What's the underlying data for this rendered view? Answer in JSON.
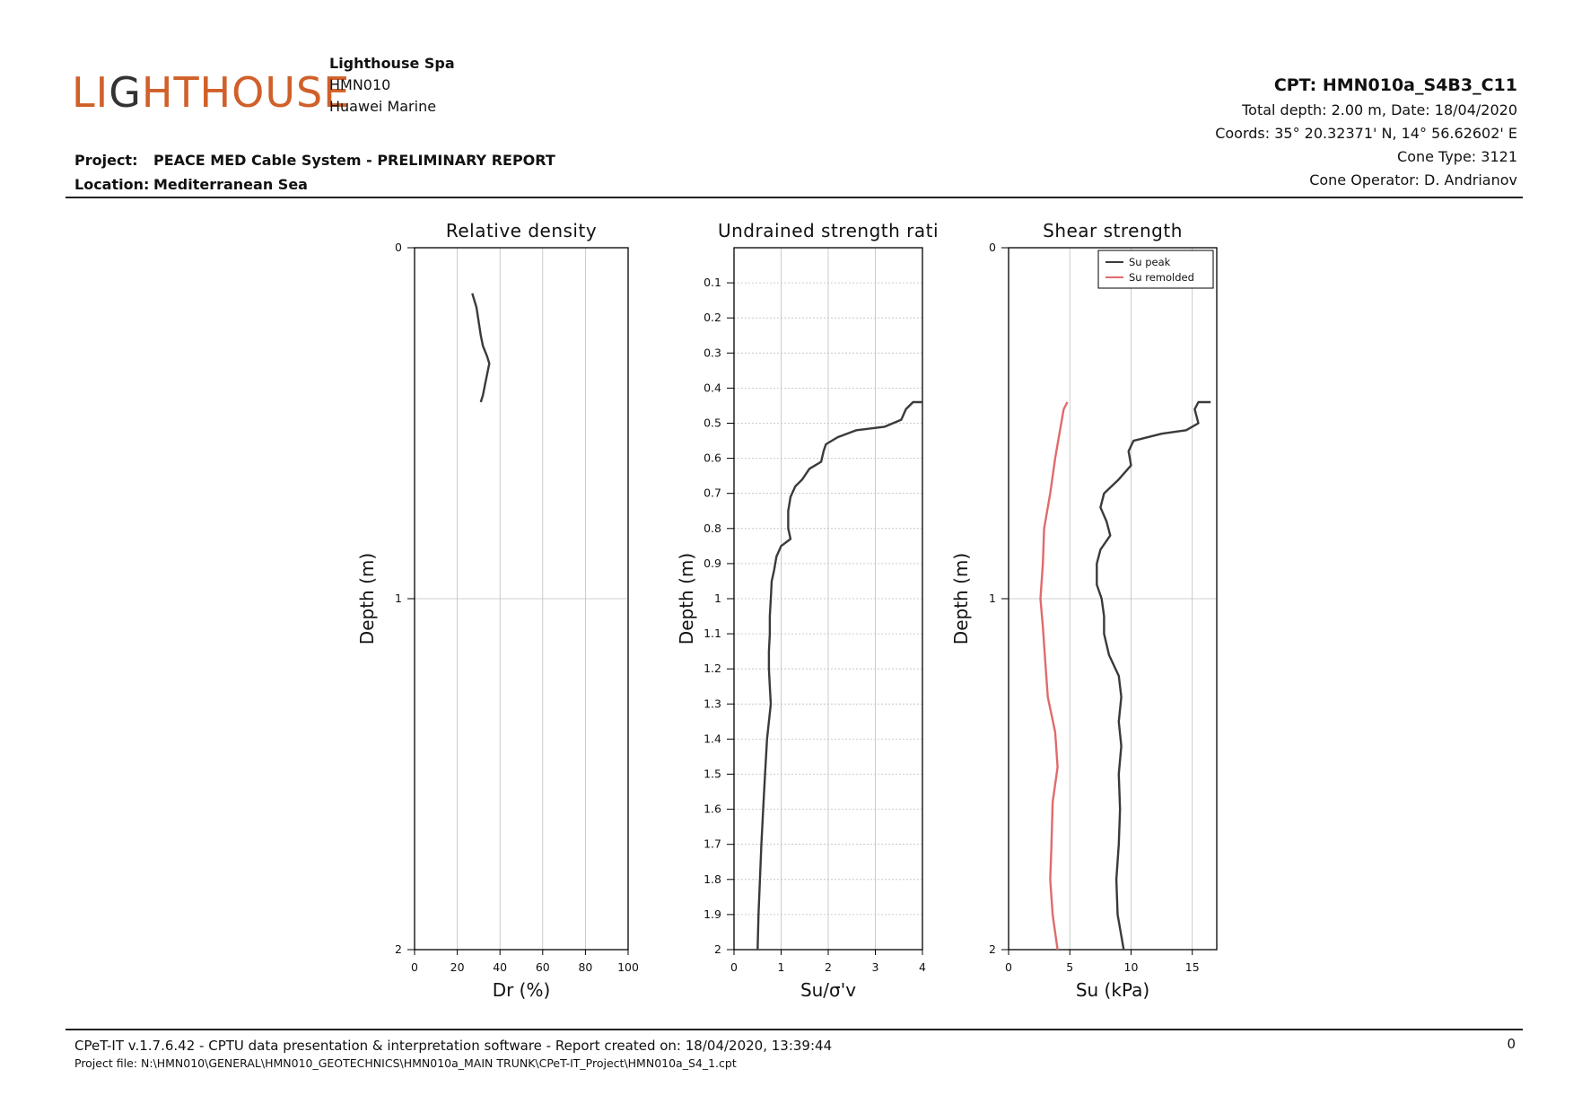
{
  "header": {
    "logo_text_a": "LI",
    "logo_text_b": "G",
    "logo_text_c": "HTHOUSE",
    "company_name": "Lighthouse Spa",
    "company_code": "HMN010",
    "client": "Huawei Marine",
    "project_label": "Project:",
    "project_value": "PEACE MED Cable System - PRELIMINARY REPORT",
    "location_label": "Location:",
    "location_value": "Mediterranean Sea",
    "cpt_title": "CPT: HMN010a_S4B3_C11",
    "total_depth": "Total depth: 2.00 m, Date: 18/04/2020",
    "coords": "Coords: 35° 20.32371' N, 14° 56.62602' E",
    "cone_type": "Cone Type: 3121",
    "cone_operator": "Cone Operator: D. Andrianov"
  },
  "footer": {
    "software": "CPeT-IT v.1.7.6.42 - CPTU data presentation & interpretation software - Report created on: 18/04/2020, 13:39:44",
    "project_file": "Project file: N:\\HMN010\\GENERAL\\HMN010_GEOTECHNICS\\HMN010a_MAIN TRUNK\\CPeT-IT_Project\\HMN010a_S4_1.cpt",
    "page_number": "0"
  },
  "colors": {
    "logo": "#d0602a",
    "series_dark": "#3a3a3a",
    "series_red": "#e06b6b",
    "grid": "#bfbfbf"
  },
  "chart_data": [
    {
      "type": "line",
      "title": "Relative density",
      "xlabel": "Dr (%)",
      "ylabel": "Depth (m)",
      "xlim": [
        0,
        100
      ],
      "ylim": [
        0,
        2
      ],
      "y_inverted": true,
      "x_ticks": [
        "0",
        "20",
        "40",
        "60",
        "80",
        "100"
      ],
      "y_ticks": [
        "0",
        "1",
        "2"
      ],
      "series": [
        {
          "color": "#3a3a3a",
          "points": [
            [
              27,
              0.13
            ],
            [
              29,
              0.17
            ],
            [
              30,
              0.21
            ],
            [
              31,
              0.25
            ],
            [
              32,
              0.28
            ],
            [
              34,
              0.31
            ],
            [
              35,
              0.33
            ],
            [
              34,
              0.36
            ],
            [
              33,
              0.39
            ],
            [
              32,
              0.42
            ],
            [
              31,
              0.44
            ]
          ]
        }
      ]
    },
    {
      "type": "line",
      "title": "Undrained strength rati",
      "xlabel": "Su/σ'v",
      "ylabel": "Depth (m)",
      "xlim": [
        0,
        4
      ],
      "ylim": [
        0,
        2
      ],
      "y_inverted": true,
      "x_ticks": [
        "0",
        "1",
        "2",
        "3",
        "4"
      ],
      "y_ticks": [
        "0.1",
        "0.2",
        "0.3",
        "0.4",
        "0.5",
        "0.6",
        "0.7",
        "0.8",
        "0.9",
        "1",
        "1.1",
        "1.2",
        "1.3",
        "1.4",
        "1.5",
        "1.6",
        "1.7",
        "1.8",
        "1.9",
        "2"
      ],
      "series": [
        {
          "color": "#3a3a3a",
          "points": [
            [
              4.0,
              0.44
            ],
            [
              3.8,
              0.44
            ],
            [
              3.65,
              0.46
            ],
            [
              3.55,
              0.49
            ],
            [
              3.2,
              0.51
            ],
            [
              2.6,
              0.52
            ],
            [
              2.2,
              0.54
            ],
            [
              1.95,
              0.56
            ],
            [
              1.9,
              0.58
            ],
            [
              1.85,
              0.61
            ],
            [
              1.6,
              0.63
            ],
            [
              1.45,
              0.66
            ],
            [
              1.3,
              0.68
            ],
            [
              1.2,
              0.71
            ],
            [
              1.15,
              0.75
            ],
            [
              1.15,
              0.8
            ],
            [
              1.2,
              0.83
            ],
            [
              1.0,
              0.85
            ],
            [
              0.9,
              0.88
            ],
            [
              0.85,
              0.92
            ],
            [
              0.8,
              0.95
            ],
            [
              0.78,
              1.0
            ],
            [
              0.76,
              1.05
            ],
            [
              0.76,
              1.1
            ],
            [
              0.74,
              1.15
            ],
            [
              0.74,
              1.2
            ],
            [
              0.76,
              1.25
            ],
            [
              0.78,
              1.3
            ],
            [
              0.74,
              1.35
            ],
            [
              0.7,
              1.4
            ],
            [
              0.66,
              1.5
            ],
            [
              0.62,
              1.6
            ],
            [
              0.58,
              1.7
            ],
            [
              0.55,
              1.8
            ],
            [
              0.52,
              1.9
            ],
            [
              0.5,
              2.0
            ]
          ]
        }
      ]
    },
    {
      "type": "line",
      "title": "Shear strength",
      "xlabel": "Su (kPa)",
      "ylabel": "Depth (m)",
      "xlim": [
        0,
        17
      ],
      "ylim": [
        0,
        2
      ],
      "y_inverted": true,
      "x_ticks": [
        "0",
        "5",
        "10",
        "15"
      ],
      "y_ticks": [
        "0",
        "1",
        "2"
      ],
      "legend": "top-right",
      "series": [
        {
          "name": "Su peak",
          "color": "#3a3a3a",
          "points": [
            [
              16.5,
              0.44
            ],
            [
              15.5,
              0.44
            ],
            [
              15.2,
              0.46
            ],
            [
              15.5,
              0.5
            ],
            [
              14.5,
              0.52
            ],
            [
              12.5,
              0.53
            ],
            [
              10.2,
              0.55
            ],
            [
              9.8,
              0.58
            ],
            [
              10.0,
              0.62
            ],
            [
              9.0,
              0.66
            ],
            [
              7.8,
              0.7
            ],
            [
              7.5,
              0.74
            ],
            [
              8.0,
              0.78
            ],
            [
              8.3,
              0.82
            ],
            [
              7.5,
              0.86
            ],
            [
              7.2,
              0.9
            ],
            [
              7.2,
              0.96
            ],
            [
              7.6,
              1.0
            ],
            [
              7.8,
              1.05
            ],
            [
              7.8,
              1.1
            ],
            [
              8.2,
              1.16
            ],
            [
              9.0,
              1.22
            ],
            [
              9.2,
              1.28
            ],
            [
              9.0,
              1.35
            ],
            [
              9.2,
              1.42
            ],
            [
              9.0,
              1.5
            ],
            [
              9.1,
              1.6
            ],
            [
              9.0,
              1.7
            ],
            [
              8.8,
              1.8
            ],
            [
              8.9,
              1.9
            ],
            [
              9.4,
              2.0
            ]
          ]
        },
        {
          "name": "Su remolded",
          "color": "#e06b6b",
          "points": [
            [
              4.8,
              0.44
            ],
            [
              4.5,
              0.46
            ],
            [
              4.2,
              0.52
            ],
            [
              3.8,
              0.6
            ],
            [
              3.4,
              0.7
            ],
            [
              2.9,
              0.8
            ],
            [
              2.8,
              0.9
            ],
            [
              2.6,
              1.0
            ],
            [
              2.8,
              1.08
            ],
            [
              3.0,
              1.18
            ],
            [
              3.2,
              1.28
            ],
            [
              3.8,
              1.38
            ],
            [
              4.0,
              1.48
            ],
            [
              3.6,
              1.58
            ],
            [
              3.5,
              1.7
            ],
            [
              3.4,
              1.8
            ],
            [
              3.6,
              1.9
            ],
            [
              4.0,
              2.0
            ]
          ]
        }
      ]
    }
  ]
}
